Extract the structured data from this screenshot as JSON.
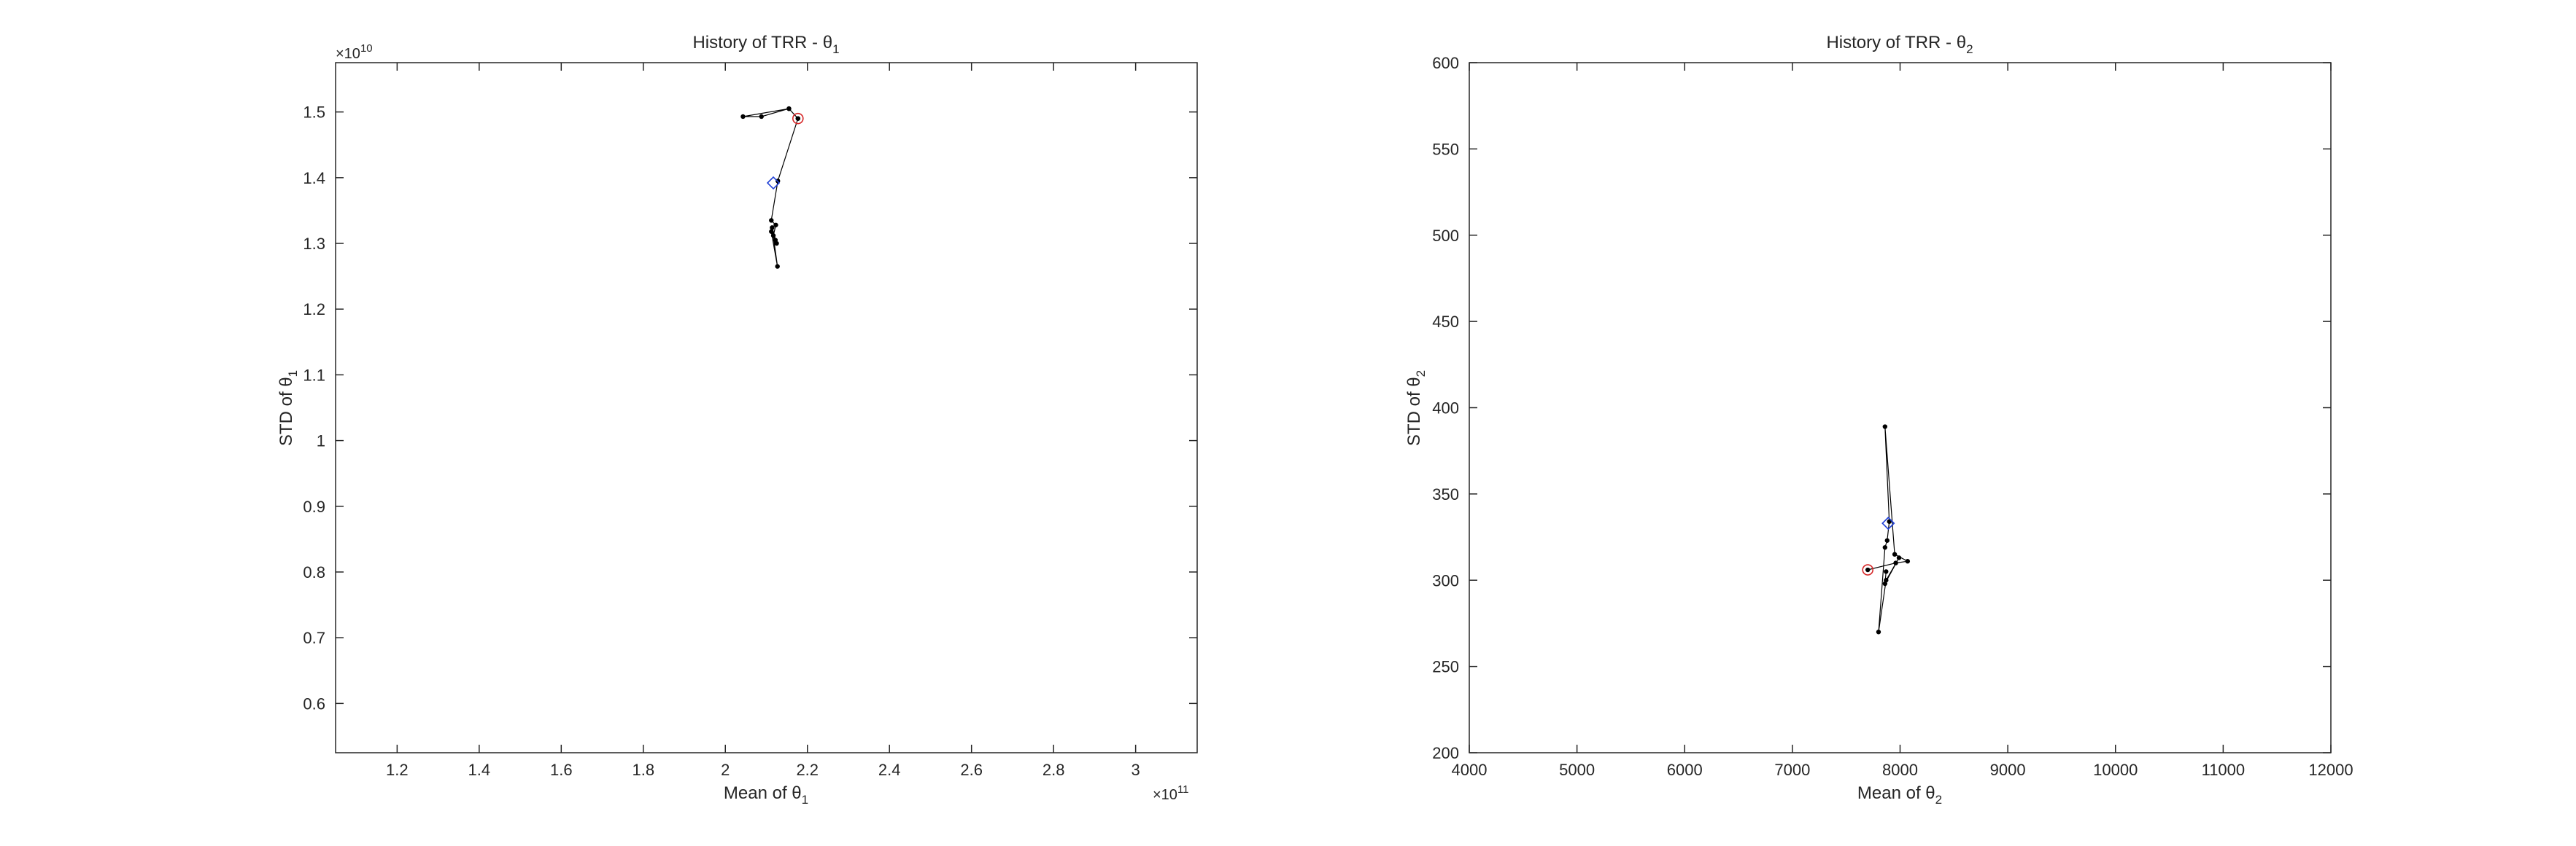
{
  "chart_data": [
    {
      "type": "line",
      "title": "History of TRR - θ",
      "title_sub": "1",
      "xlabel": "Mean of θ",
      "xlabel_sub": "1",
      "ylabel": "STD of θ",
      "ylabel_sub": "1",
      "x_exponent": "×10",
      "x_exponent_power": "11",
      "y_exponent": "×10",
      "y_exponent_power": "10",
      "xlim": [
        1.05,
        3.15
      ],
      "ylim": [
        0.525,
        1.575
      ],
      "xticks": [
        1.2,
        1.4,
        1.6,
        1.8,
        2,
        2.2,
        2.4,
        2.6,
        2.8,
        3
      ],
      "xtick_labels": [
        "1.2",
        "1.4",
        "1.6",
        "1.8",
        "2",
        "2.2",
        "2.4",
        "2.6",
        "2.8",
        "3"
      ],
      "yticks": [
        0.6,
        0.7,
        0.8,
        0.9,
        1,
        1.1,
        1.2,
        1.3,
        1.4,
        1.5
      ],
      "ytick_labels": [
        "0.6",
        "0.7",
        "0.8",
        "0.9",
        "1",
        "1.1",
        "1.2",
        "1.3",
        "1.4",
        "1.5"
      ],
      "grid": false,
      "path": {
        "x": [
          2.177,
          2.155,
          2.088,
          2.043,
          2.155,
          2.177,
          2.128,
          2.112,
          2.123,
          2.117,
          2.122,
          2.112,
          2.127,
          2.114,
          2.125
        ],
        "y": [
          1.49,
          1.505,
          1.493,
          1.493,
          1.505,
          1.49,
          1.395,
          1.335,
          1.328,
          1.312,
          1.305,
          1.318,
          1.265,
          1.324,
          1.3
        ]
      },
      "start_marker": {
        "x": 2.177,
        "y": 1.49,
        "color": "#d62728"
      },
      "mean_marker": {
        "x": 2.117,
        "y": 1.392,
        "color": "#1f3fd6"
      }
    },
    {
      "type": "line",
      "title": "History of TRR - θ",
      "title_sub": "2",
      "xlabel": "Mean of θ",
      "xlabel_sub": "2",
      "ylabel": "STD of θ",
      "ylabel_sub": "2",
      "xlim": [
        4000,
        12000
      ],
      "ylim": [
        200,
        600
      ],
      "xticks": [
        4000,
        5000,
        6000,
        7000,
        8000,
        9000,
        10000,
        11000,
        12000
      ],
      "xtick_labels": [
        "4000",
        "5000",
        "6000",
        "7000",
        "8000",
        "9000",
        "10000",
        "11000",
        "12000"
      ],
      "yticks": [
        200,
        250,
        300,
        350,
        400,
        450,
        500,
        550,
        600
      ],
      "ytick_labels": [
        "200",
        "250",
        "300",
        "350",
        "400",
        "450",
        "500",
        "550",
        "600"
      ],
      "grid": false,
      "path": {
        "x": [
          7700,
          7960,
          8070,
          7950,
          7860,
          7900,
          7880,
          7860,
          7800,
          7870,
          7990,
          7860,
          7870
        ],
        "y": [
          306,
          310,
          311,
          315,
          389,
          334,
          323,
          319,
          270,
          300,
          313,
          298,
          305
        ]
      },
      "start_marker": {
        "x": 7700,
        "y": 306,
        "color": "#d62728"
      },
      "mean_marker": {
        "x": 7890,
        "y": 333,
        "color": "#1f3fd6"
      }
    }
  ]
}
